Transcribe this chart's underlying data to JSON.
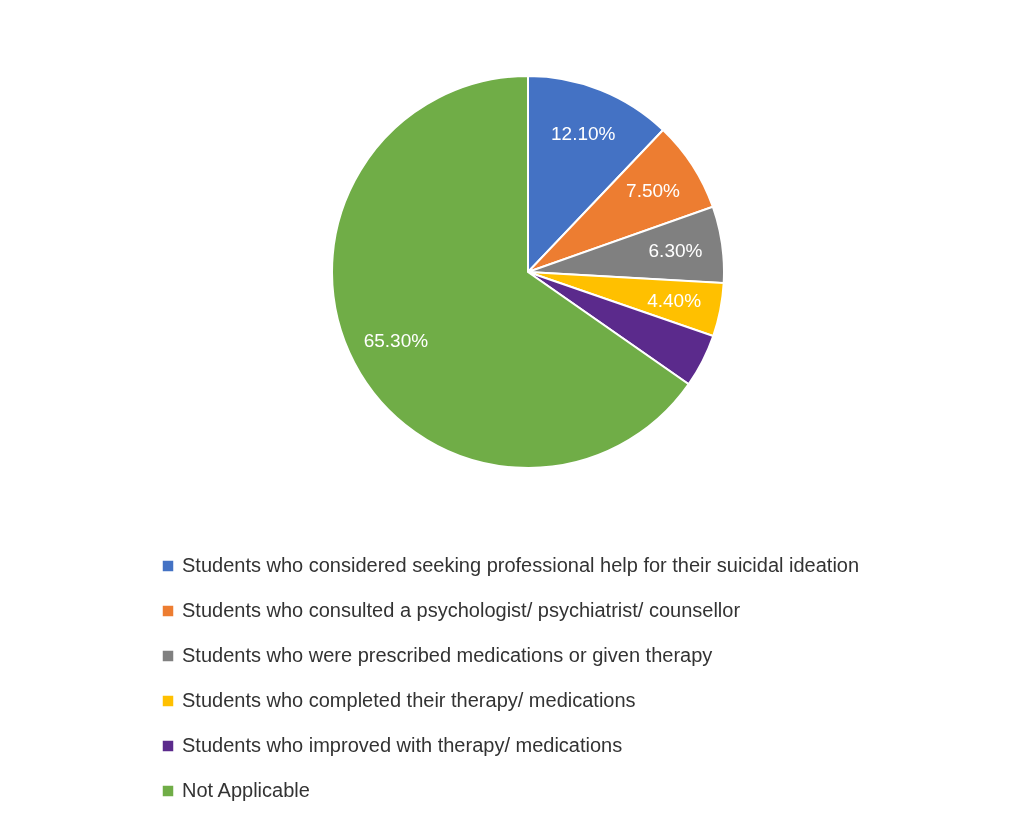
{
  "chart_data": {
    "type": "pie",
    "categories": [
      "Students who considered seeking professional help for their suicidal ideation",
      "Students who consulted a psychologist/ psychiatrist/ counsellor",
      "Students who were prescribed medications or given therapy",
      "Students who completed their therapy/ medications",
      "Students who improved with therapy/ medications",
      "Not Applicable"
    ],
    "values": [
      12.1,
      7.5,
      6.3,
      4.4,
      4.4,
      65.3
    ],
    "value_labels": [
      "12.10%",
      "7.50%",
      "6.30%",
      "4.40%",
      null,
      "65.30%"
    ],
    "colors": [
      "#4472c4",
      "#ed7d31",
      "#808080",
      "#ffc000",
      "#5b2a8c",
      "#70ad47"
    ],
    "legend": "bottom"
  }
}
